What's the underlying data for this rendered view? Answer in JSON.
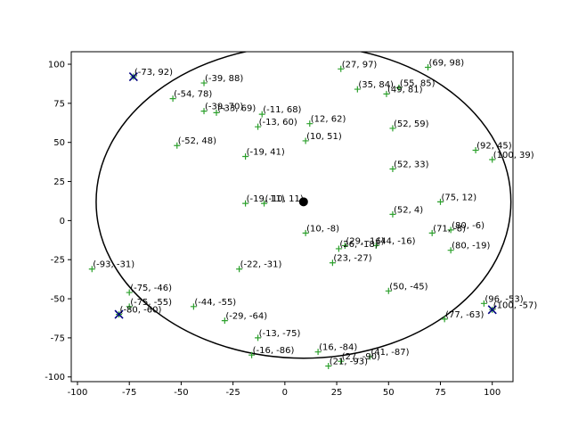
{
  "chart_data": {
    "type": "scatter",
    "title": "",
    "xlabel": "",
    "ylabel": "",
    "xlim": [
      -103,
      110
    ],
    "ylim": [
      -103,
      108
    ],
    "xticks": [
      -100,
      -75,
      -50,
      -25,
      0,
      25,
      50,
      75,
      100
    ],
    "yticks": [
      -100,
      -75,
      -50,
      -25,
      0,
      25,
      50,
      75,
      100
    ],
    "grid": false,
    "legend": "none",
    "colors": {
      "points": "#2ca02c",
      "hull": "#000080",
      "circle": "#000000",
      "center": "#000000"
    },
    "points": [
      {
        "x": -73,
        "y": 92,
        "label": "(-73, 92)"
      },
      {
        "x": -39,
        "y": 88,
        "label": "(-39, 88)"
      },
      {
        "x": 27,
        "y": 97,
        "label": "(27, 97)"
      },
      {
        "x": 69,
        "y": 98,
        "label": "(69, 98)"
      },
      {
        "x": 35,
        "y": 84,
        "label": "(35, 84)"
      },
      {
        "x": 55,
        "y": 85,
        "label": "(55, 85)"
      },
      {
        "x": 49,
        "y": 81,
        "label": "(49, 81)"
      },
      {
        "x": -54,
        "y": 78,
        "label": "(-54, 78)"
      },
      {
        "x": -39,
        "y": 70,
        "label": "(-39, 70)"
      },
      {
        "x": -33,
        "y": 69,
        "label": "(-33, 69)"
      },
      {
        "x": -11,
        "y": 68,
        "label": "(-11, 68)"
      },
      {
        "x": -13,
        "y": 60,
        "label": "(-13, 60)"
      },
      {
        "x": 12,
        "y": 62,
        "label": "(12, 62)"
      },
      {
        "x": 52,
        "y": 59,
        "label": "(52, 59)"
      },
      {
        "x": 10,
        "y": 51,
        "label": "(10, 51)"
      },
      {
        "x": -52,
        "y": 48,
        "label": "(-52, 48)"
      },
      {
        "x": 92,
        "y": 45,
        "label": "(92, 45)"
      },
      {
        "x": 100,
        "y": 39,
        "label": "(100, 39)"
      },
      {
        "x": -19,
        "y": 41,
        "label": "(-19, 41)"
      },
      {
        "x": 52,
        "y": 33,
        "label": "(52, 33)"
      },
      {
        "x": -19,
        "y": 11,
        "label": "(-19, 11)"
      },
      {
        "x": -10,
        "y": 11,
        "label": "(-10, 11)"
      },
      {
        "x": 75,
        "y": 12,
        "label": "(75, 12)"
      },
      {
        "x": 52,
        "y": 4,
        "label": "(52, 4)"
      },
      {
        "x": 10,
        "y": -8,
        "label": "(10, -8)"
      },
      {
        "x": 71,
        "y": -8,
        "label": "(71, -8)"
      },
      {
        "x": 80,
        "y": -6,
        "label": "(80, -6)"
      },
      {
        "x": 44,
        "y": -16,
        "label": "(44, -16)"
      },
      {
        "x": 29,
        "y": -16,
        "label": "(29, -16)"
      },
      {
        "x": 26,
        "y": -18,
        "label": "(26, -18)"
      },
      {
        "x": 80,
        "y": -19,
        "label": "(80, -19)"
      },
      {
        "x": 23,
        "y": -27,
        "label": "(23, -27)"
      },
      {
        "x": -93,
        "y": -31,
        "label": "(-93, -31)"
      },
      {
        "x": -22,
        "y": -31,
        "label": "(-22, -31)"
      },
      {
        "x": 50,
        "y": -45,
        "label": "(50, -45)"
      },
      {
        "x": -75,
        "y": -46,
        "label": "(-75, -46)"
      },
      {
        "x": 96,
        "y": -53,
        "label": "(96, -53)"
      },
      {
        "x": 100,
        "y": -57,
        "label": "(100, -57)"
      },
      {
        "x": -75,
        "y": -55,
        "label": "(-75, -55)"
      },
      {
        "x": -44,
        "y": -55,
        "label": "(-44, -55)"
      },
      {
        "x": -80,
        "y": -60,
        "label": "(-80, -60)"
      },
      {
        "x": 77,
        "y": -63,
        "label": "(77, -63)"
      },
      {
        "x": -29,
        "y": -64,
        "label": "(-29, -64)"
      },
      {
        "x": -13,
        "y": -75,
        "label": "(-13, -75)"
      },
      {
        "x": 16,
        "y": -84,
        "label": "(16, -84)"
      },
      {
        "x": -16,
        "y": -86,
        "label": "(-16, -86)"
      },
      {
        "x": 41,
        "y": -87,
        "label": "(41, -87)"
      },
      {
        "x": 27,
        "y": -90,
        "label": "(27, -90)"
      },
      {
        "x": 21,
        "y": -93,
        "label": "(21, -93)"
      }
    ],
    "hull_markers": [
      {
        "x": -73,
        "y": 92
      },
      {
        "x": -80,
        "y": -60
      },
      {
        "x": 100,
        "y": -57
      }
    ],
    "center": {
      "x": 9,
      "y": 12
    },
    "circle_radius": 100
  }
}
